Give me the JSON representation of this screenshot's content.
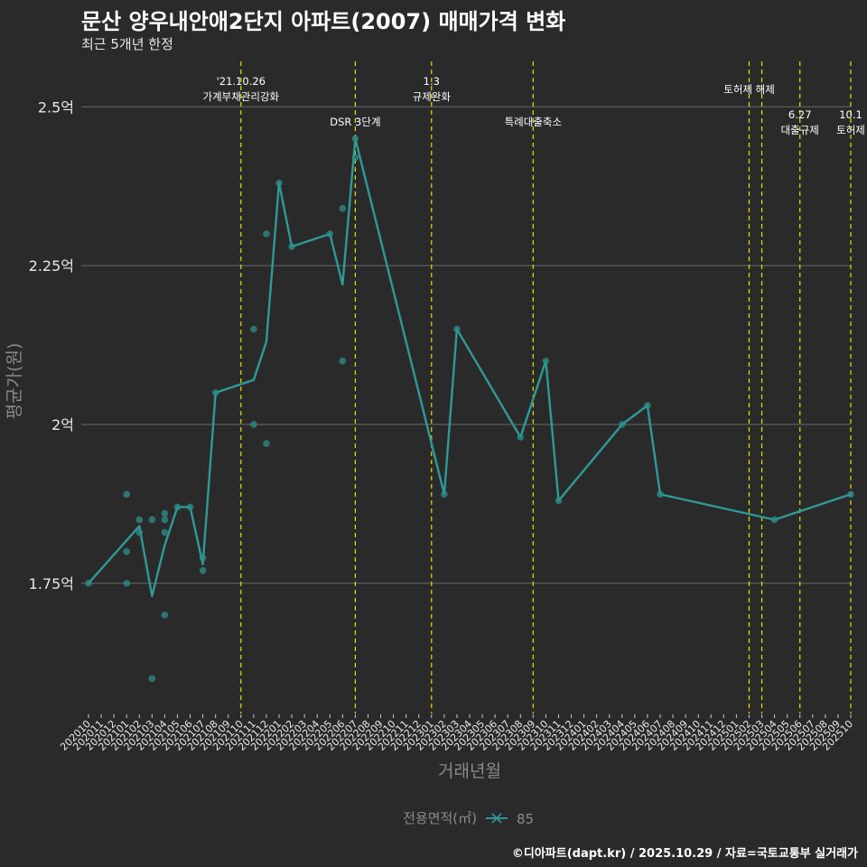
{
  "header": {
    "title": "문산 양우내안애2단지 아파트(2007) 매매가격 변화",
    "subtitle": "최근 5개년 한정"
  },
  "caption": "©디아파트(dapt.kr) / 2025.10.29 / 자료=국토교통부 실거래가",
  "colors": {
    "background": "#2b2a2b",
    "line": "#2e9a96",
    "point": "#2e8f8a",
    "event_line": "#e5e000",
    "grid": "#6a6a6a"
  },
  "chart_data": {
    "type": "line",
    "title": "문산 양우내안애2단지 아파트(2007) 매매가격 변화",
    "xlabel": "거래년월",
    "ylabel": "평균가(원)",
    "ylim": [
      1.545,
      2.59
    ],
    "y_ticks": [
      {
        "value": 1.75,
        "label": "1.75억"
      },
      {
        "value": 2.0,
        "label": "2억"
      },
      {
        "value": 2.25,
        "label": "2.25억"
      },
      {
        "value": 2.5,
        "label": "2.5억"
      }
    ],
    "x_ticks": [
      "202010",
      "202011",
      "202012",
      "202101",
      "202102",
      "202103",
      "202104",
      "202105",
      "202106",
      "202107",
      "202108",
      "202109",
      "202110",
      "202111",
      "202112",
      "202201",
      "202202",
      "202203",
      "202204",
      "202205",
      "202206",
      "202207",
      "202208",
      "202209",
      "202210",
      "202211",
      "202212",
      "202301",
      "202302",
      "202303",
      "202304",
      "202305",
      "202306",
      "202307",
      "202308",
      "202309",
      "202310",
      "202311",
      "202312",
      "202401",
      "202402",
      "202403",
      "202404",
      "202405",
      "202406",
      "202407",
      "202408",
      "202409",
      "202410",
      "202411",
      "202412",
      "202501",
      "202502",
      "202503",
      "202504",
      "202505",
      "202506",
      "202507",
      "202508",
      "202509",
      "202510"
    ],
    "legend": {
      "title": "전용면적(㎡)",
      "entries": [
        "85"
      ],
      "position": "bottom"
    },
    "series": [
      {
        "name": "85",
        "line": [
          [
            0,
            1.75
          ],
          [
            4,
            1.84
          ],
          [
            5,
            1.73
          ],
          [
            6,
            1.81
          ],
          [
            7,
            1.87
          ],
          [
            8,
            1.87
          ],
          [
            9,
            1.78
          ],
          [
            10,
            2.05
          ],
          [
            13,
            2.07
          ],
          [
            14,
            2.13
          ],
          [
            15,
            2.38
          ],
          [
            16,
            2.28
          ],
          [
            19,
            2.3
          ],
          [
            20,
            2.22
          ],
          [
            21,
            2.45
          ],
          [
            28,
            1.89
          ],
          [
            29,
            2.15
          ],
          [
            34,
            1.98
          ],
          [
            36,
            2.1
          ],
          [
            37,
            1.88
          ],
          [
            42,
            2.0
          ],
          [
            44,
            2.03
          ],
          [
            45,
            1.89
          ],
          [
            54,
            1.85
          ],
          [
            60,
            1.89
          ]
        ],
        "points": [
          [
            0,
            1.75
          ],
          [
            3,
            1.89
          ],
          [
            3,
            1.8
          ],
          [
            3,
            1.75
          ],
          [
            4,
            1.85
          ],
          [
            4,
            1.83
          ],
          [
            5,
            1.85
          ],
          [
            5,
            1.6
          ],
          [
            6,
            1.86
          ],
          [
            6,
            1.85
          ],
          [
            6,
            1.83
          ],
          [
            6,
            1.7
          ],
          [
            7,
            1.87
          ],
          [
            8,
            1.87
          ],
          [
            9,
            1.79
          ],
          [
            9,
            1.77
          ],
          [
            10,
            2.05
          ],
          [
            13,
            2.15
          ],
          [
            13,
            2.0
          ],
          [
            14,
            2.3
          ],
          [
            14,
            1.97
          ],
          [
            15,
            2.38
          ],
          [
            16,
            2.28
          ],
          [
            19,
            2.3
          ],
          [
            20,
            2.34
          ],
          [
            20,
            2.1
          ],
          [
            21,
            2.45
          ],
          [
            21,
            2.42
          ],
          [
            28,
            1.89
          ],
          [
            29,
            2.15
          ],
          [
            34,
            1.98
          ],
          [
            36,
            2.1
          ],
          [
            37,
            1.88
          ],
          [
            42,
            2.0
          ],
          [
            44,
            2.03
          ],
          [
            45,
            1.89
          ],
          [
            54,
            1.85
          ],
          [
            60,
            1.89
          ]
        ]
      }
    ],
    "events": [
      {
        "x": 12,
        "lines": [
          "'21.10.26",
          "가계부채관리강화"
        ],
        "row": "top"
      },
      {
        "x": 21,
        "lines": [
          "DSR 3단계"
        ],
        "row": "mid"
      },
      {
        "x": 27,
        "lines": [
          "1.3",
          "규제완화"
        ],
        "row": "top"
      },
      {
        "x": 35,
        "lines": [
          "특례대출축소"
        ],
        "row": "mid"
      },
      {
        "x": 52,
        "lines": [],
        "row": "none"
      },
      {
        "x": 53,
        "lines": [
          "토허제 해제"
        ],
        "row": "single"
      },
      {
        "x": 56,
        "lines": [
          "6.27",
          "대출규제"
        ],
        "row": "low"
      },
      {
        "x": 60,
        "lines": [
          "10.1",
          "토허제"
        ],
        "row": "low"
      }
    ]
  }
}
